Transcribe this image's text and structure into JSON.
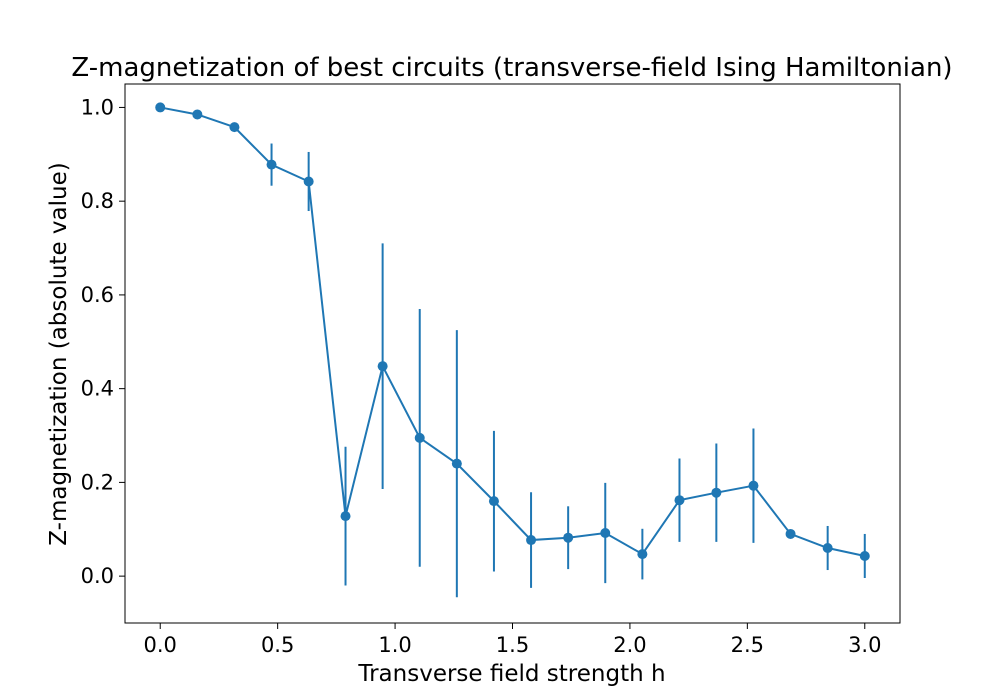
{
  "chart_data": {
    "type": "scatter",
    "title": "Z-magnetization of best circuits (transverse-field Ising Hamiltonian)",
    "xlabel": "Transverse field strength h",
    "ylabel": "Z-magnetization (absolute value)",
    "xlim": [
      -0.15,
      3.15
    ],
    "ylim": [
      -0.1,
      1.05
    ],
    "grid": false,
    "xticks": [
      0.0,
      0.5,
      1.0,
      1.5,
      2.0,
      2.5,
      3.0
    ],
    "xtick_labels": [
      "0.0",
      "0.5",
      "1.0",
      "1.5",
      "2.0",
      "2.5",
      "3.0"
    ],
    "yticks": [
      0.0,
      0.2,
      0.4,
      0.6,
      0.8,
      1.0
    ],
    "ytick_labels": [
      "0.0",
      "0.2",
      "0.4",
      "0.6",
      "0.8",
      "1.0"
    ],
    "color": "#1f77b4",
    "marker": "circle",
    "line": true,
    "error_bars": true,
    "x": [
      0.0,
      0.158,
      0.316,
      0.474,
      0.632,
      0.789,
      0.947,
      1.105,
      1.263,
      1.421,
      1.579,
      1.737,
      1.895,
      2.053,
      2.211,
      2.368,
      2.526,
      2.684,
      2.842,
      3.0
    ],
    "y": [
      1.0,
      0.985,
      0.958,
      0.878,
      0.842,
      0.128,
      0.448,
      0.295,
      0.24,
      0.16,
      0.077,
      0.082,
      0.092,
      0.047,
      0.162,
      0.178,
      0.193,
      0.09,
      0.06,
      0.043
    ],
    "y_err": [
      0.0,
      0.0,
      0.005,
      0.045,
      0.063,
      0.148,
      0.262,
      0.275,
      0.285,
      0.15,
      0.102,
      0.067,
      0.107,
      0.054,
      0.089,
      0.105,
      0.122,
      0.0,
      0.047,
      0.047
    ]
  }
}
